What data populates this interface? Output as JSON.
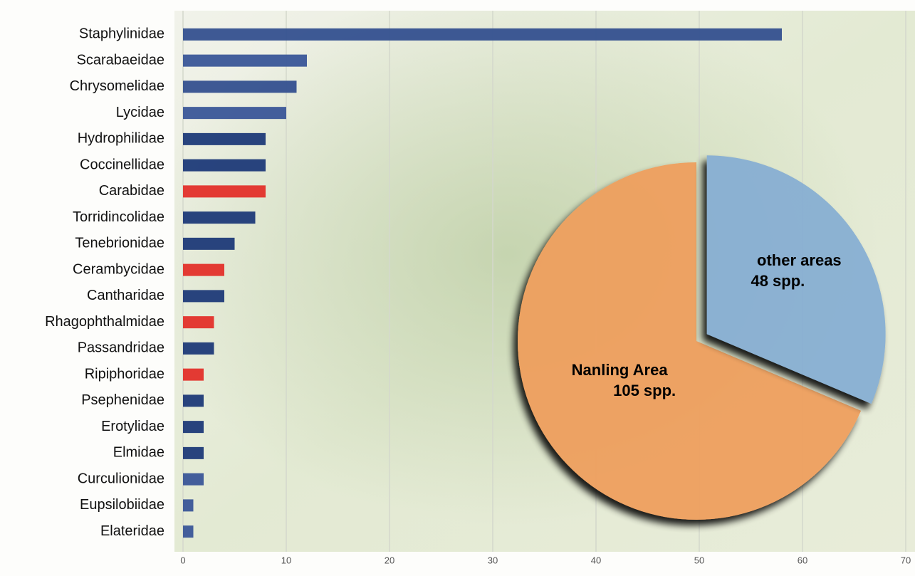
{
  "chart_data": [
    {
      "type": "bar",
      "orientation": "horizontal",
      "categories": [
        "Staphylinidae",
        "Scarabaeidae",
        "Chrysomelidae",
        "Lycidae",
        "Hydrophilidae",
        "Coccinellidae",
        "Carabidae",
        "Torridincolidae",
        "Tenebrionidae",
        "Cerambycidae",
        "Cantharidae",
        "Rhagophthalmidae",
        "Passandridae",
        "Ripiphoridae",
        "Psephenidae",
        "Erotylidae",
        "Elmidae",
        "Curculionidae",
        "Eupsilobiidae",
        "Elateridae"
      ],
      "values": [
        58,
        12,
        11,
        10,
        8,
        8,
        8,
        7,
        5,
        4,
        4,
        3,
        3,
        2,
        2,
        2,
        2,
        2,
        1,
        1
      ],
      "colors": [
        "#34508f",
        "#3a5698",
        "#34508f",
        "#3a5698",
        "#1e3a78",
        "#1e3a78",
        "#e3302a",
        "#1e3a78",
        "#1e3a78",
        "#e3302a",
        "#1e3a78",
        "#e3302a",
        "#1e3a78",
        "#e3302a",
        "#1e3a78",
        "#1e3a78",
        "#1e3a78",
        "#3a5698",
        "#3a5698",
        "#3a5698"
      ],
      "xlim": [
        0,
        70
      ],
      "xticks": [
        0,
        10,
        20,
        30,
        40,
        50,
        60,
        70
      ],
      "grid": true
    },
    {
      "type": "pie",
      "categories": [
        "Nanling Area",
        "other areas"
      ],
      "values": [
        105,
        48
      ],
      "value_labels": [
        "105 spp.",
        "48 spp."
      ],
      "colors": [
        "#ef9e5c",
        "#86aed3"
      ],
      "explode": [
        0,
        0.07
      ]
    }
  ]
}
